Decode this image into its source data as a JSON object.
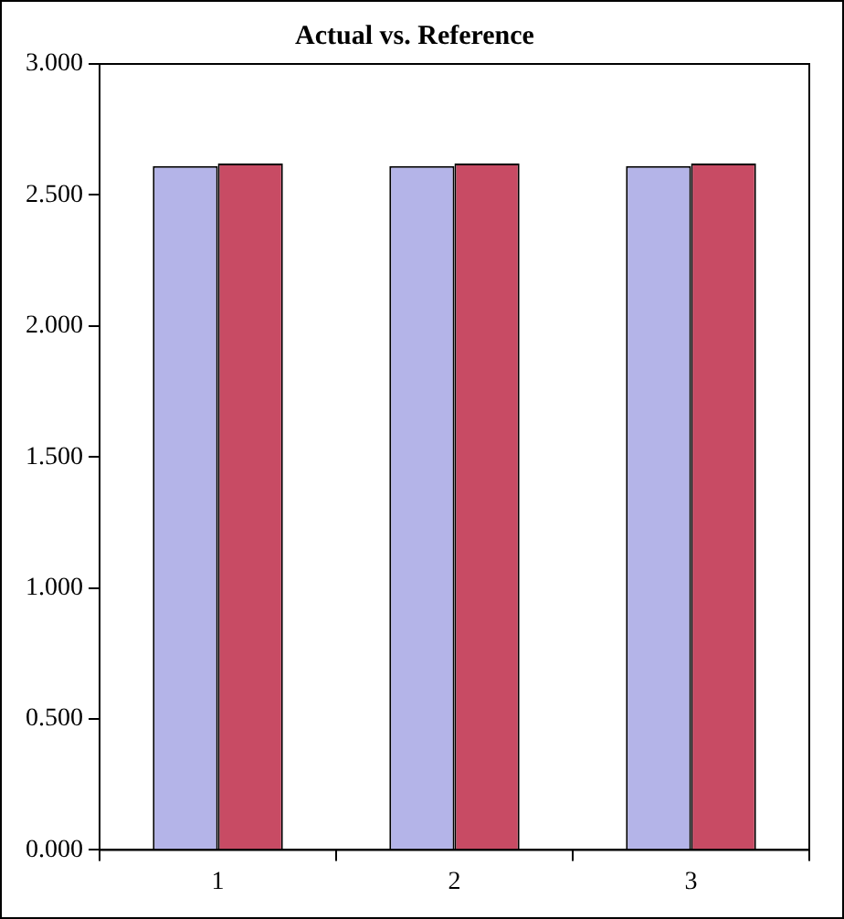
{
  "chart_data": {
    "type": "bar",
    "title": "Actual vs. Reference",
    "categories": [
      "1",
      "2",
      "3"
    ],
    "series": [
      {
        "color": "#b4b4e8",
        "values": [
          2.61,
          2.61,
          2.61
        ]
      },
      {
        "color": "#c84b64",
        "values": [
          2.62,
          2.62,
          2.62
        ]
      }
    ],
    "ylim": [
      0,
      3
    ],
    "yticks": [
      {
        "value": 0,
        "label": "0.000"
      },
      {
        "value": 0.5,
        "label": "0.500"
      },
      {
        "value": 1,
        "label": "1.000"
      },
      {
        "value": 1.5,
        "label": "1.500"
      },
      {
        "value": 2,
        "label": "2.000"
      },
      {
        "value": 2.5,
        "label": "2.500"
      },
      {
        "value": 3,
        "label": "3.000"
      }
    ],
    "grid": false,
    "legend": false
  }
}
